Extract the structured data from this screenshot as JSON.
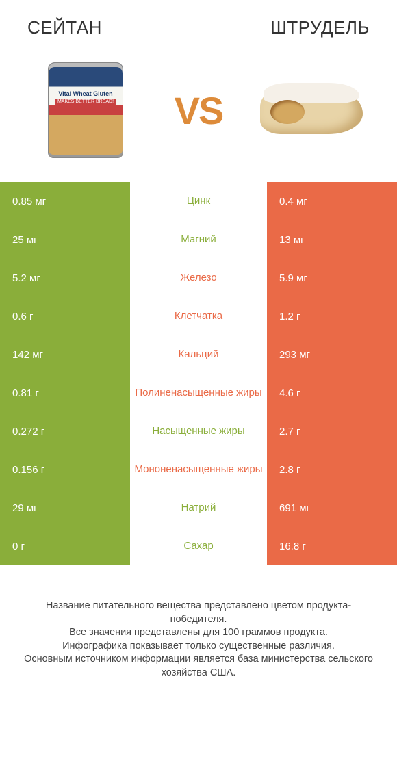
{
  "header": {
    "left_title": "СЕЙТАН",
    "right_title": "ШТРУДЕЛЬ",
    "vs_label": "VS",
    "title_color": "#333333",
    "vs_color": "#dd8b3a"
  },
  "colors": {
    "left_bar": "#8aae3a",
    "right_bar": "#ea6a47",
    "left_text": "#8aae3a",
    "right_text": "#ea6a47",
    "row_alt_bg": "#ffffff",
    "row_bg": "#ffffff"
  },
  "can": {
    "line1": "Vital Wheat Gluten",
    "line2": "MAKES BETTER BREAD!"
  },
  "rows": [
    {
      "left": "0.85 мг",
      "mid": "Цинк",
      "right": "0.4 мг",
      "winner": "left"
    },
    {
      "left": "25 мг",
      "mid": "Магний",
      "right": "13 мг",
      "winner": "left"
    },
    {
      "left": "5.2 мг",
      "mid": "Железо",
      "right": "5.9 мг",
      "winner": "right"
    },
    {
      "left": "0.6 г",
      "mid": "Клетчатка",
      "right": "1.2 г",
      "winner": "right"
    },
    {
      "left": "142 мг",
      "mid": "Кальций",
      "right": "293 мг",
      "winner": "right"
    },
    {
      "left": "0.81 г",
      "mid": "Полиненасыщенные жиры",
      "right": "4.6 г",
      "winner": "right"
    },
    {
      "left": "0.272 г",
      "mid": "Насыщенные жиры",
      "right": "2.7 г",
      "winner": "left"
    },
    {
      "left": "0.156 г",
      "mid": "Мононенасыщенные жиры",
      "right": "2.8 г",
      "winner": "right"
    },
    {
      "left": "29 мг",
      "mid": "Натрий",
      "right": "691 мг",
      "winner": "left"
    },
    {
      "left": "0 г",
      "mid": "Сахар",
      "right": "16.8 г",
      "winner": "left"
    }
  ],
  "footer": {
    "line1": "Название питательного вещества представлено цветом продукта-победителя.",
    "line2": "Все значения представлены для 100 граммов продукта.",
    "line3": "Инфографика показывает только существенные различия.",
    "line4": "Основным источником информации является база министерства сельского хозяйства США."
  }
}
